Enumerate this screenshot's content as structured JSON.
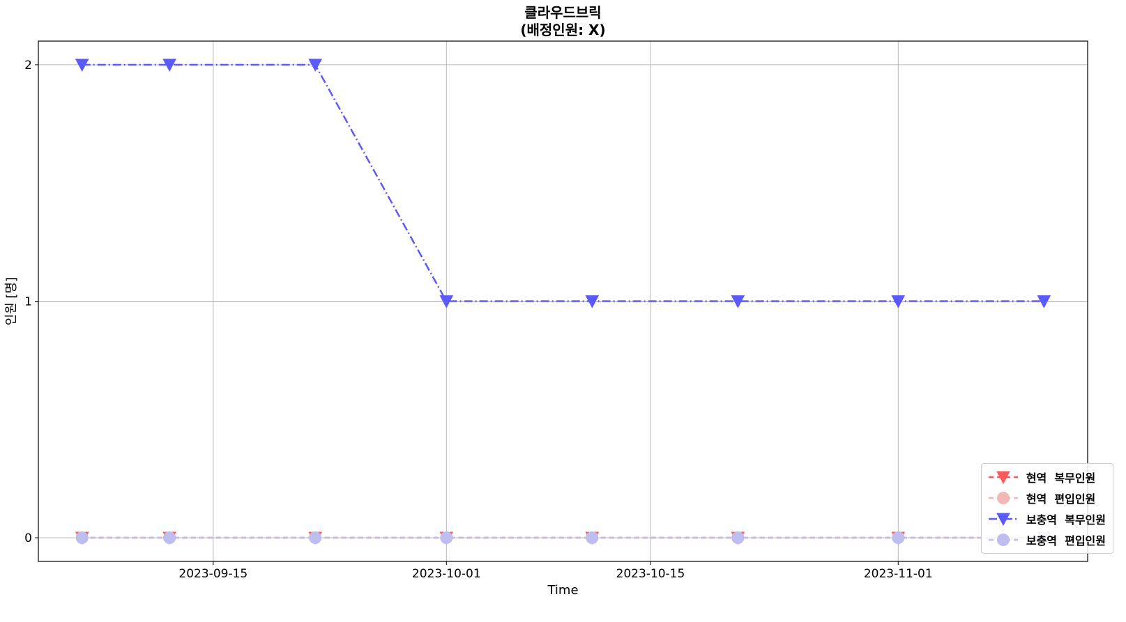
{
  "chart_data": {
    "type": "line",
    "title": "클라우드브릭",
    "subtitle": "(배정인원:   X)",
    "xlabel": "Time",
    "ylabel": "인원  [명]",
    "x": [
      "2023-09-06",
      "2023-09-12",
      "2023-09-22",
      "2023-10-01",
      "2023-10-11",
      "2023-10-21",
      "2023-11-01",
      "2023-11-11"
    ],
    "xlim": [
      "2023-09-03",
      "2023-11-14"
    ],
    "ylim": [
      -0.1,
      2.1
    ],
    "xticks": [
      "2023-09-15",
      "2023-10-01",
      "2023-10-15",
      "2023-11-01"
    ],
    "yticks": [
      0,
      1,
      2
    ],
    "grid": true,
    "legend_position": "bottom-right",
    "series": [
      {
        "name": "현역  복무인원",
        "values": [
          0,
          0,
          0,
          0,
          0,
          0,
          0,
          0
        ],
        "color": "#ff5a5a",
        "marker": "triangle-down",
        "linestyle": "dashed"
      },
      {
        "name": "현역  편입인원",
        "values": [
          0,
          0,
          0,
          0,
          0,
          0,
          0,
          0
        ],
        "color": "#f2b8b8",
        "marker": "circle",
        "linestyle": "dashed"
      },
      {
        "name": "보충역  복무인원",
        "values": [
          2,
          2,
          2,
          1,
          1,
          1,
          1,
          1
        ],
        "color": "#5a5aff",
        "marker": "triangle-down",
        "linestyle": "dash-dot"
      },
      {
        "name": "보충역  편입인원",
        "values": [
          0,
          0,
          0,
          0,
          0,
          0,
          0,
          0
        ],
        "color": "#bdbdf0",
        "marker": "circle",
        "linestyle": "dashed"
      }
    ]
  }
}
